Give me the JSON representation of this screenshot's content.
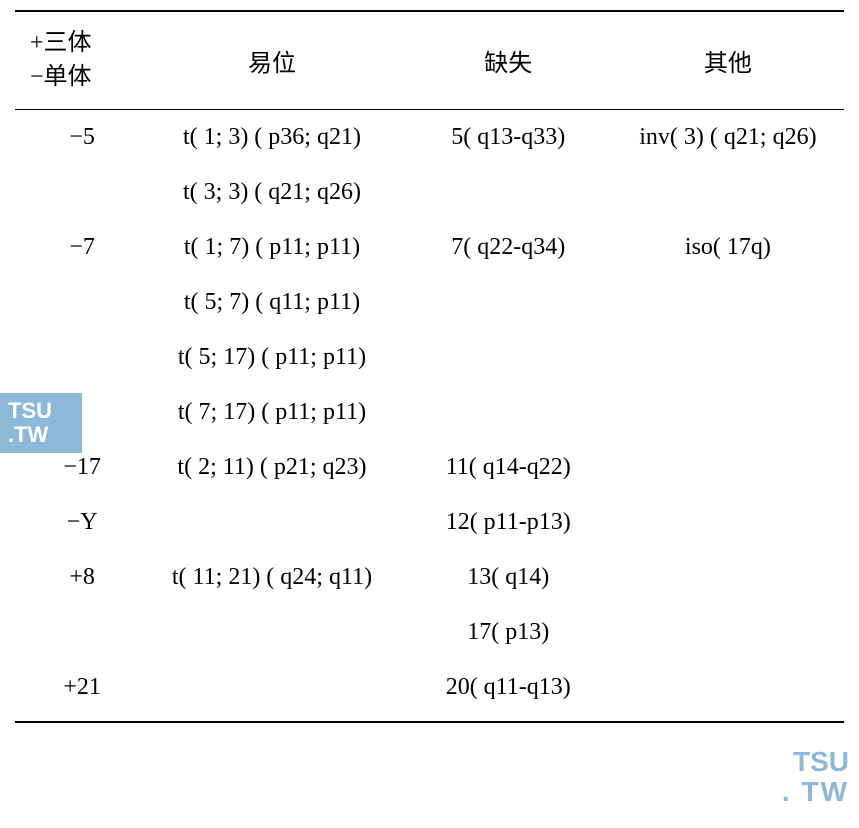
{
  "table": {
    "background_color": "#ffffff",
    "text_color": "#000000",
    "border_color": "#000000",
    "font_size": 24,
    "header": {
      "col1_line1": "+三体",
      "col1_line2": "−单体",
      "col2": "易位",
      "col3": "缺失",
      "col4": "其他"
    },
    "rows": [
      {
        "c1": "−5",
        "c2": "t( 1; 3) ( p36; q21)",
        "c3": "5( q13-q33)",
        "c4": "inv( 3) ( q21; q26)"
      },
      {
        "c1": "",
        "c2": "t( 3; 3) ( q21; q26)",
        "c3": "",
        "c4": ""
      },
      {
        "c1": "−7",
        "c2": "t( 1; 7) ( p11; p11)",
        "c3": "7( q22-q34)",
        "c4": "iso( 17q)"
      },
      {
        "c1": "",
        "c2": "t( 5; 7) ( q11; p11)",
        "c3": "",
        "c4": ""
      },
      {
        "c1": "",
        "c2": "t( 5; 17) ( p11; p11)",
        "c3": "",
        "c4": ""
      },
      {
        "c1": "",
        "c2": "t( 7; 17) ( p11; p11)",
        "c3": "",
        "c4": ""
      },
      {
        "c1": "−17",
        "c2": "t( 2; 11) ( p21; q23)",
        "c3": "11( q14-q22)",
        "c4": ""
      },
      {
        "c1": "−Y",
        "c2": "",
        "c3": "12( p11-p13)",
        "c4": ""
      },
      {
        "c1": "+8",
        "c2": "t( 11; 21) ( q24; q11)",
        "c3": "13( q14)",
        "c4": ""
      },
      {
        "c1": "",
        "c2": "",
        "c3": "17( p13)",
        "c4": ""
      },
      {
        "c1": "+21",
        "c2": "",
        "c3": "20( q11-q13)",
        "c4": ""
      }
    ]
  },
  "watermark": {
    "left_line1": "TSU",
    "left_line2": ".TW",
    "right_line1": "TSU",
    "right_line2": ". TW",
    "color": "#8db8d8",
    "bg_color": "#8db8d8",
    "text_color_on_bg": "#ffffff"
  }
}
